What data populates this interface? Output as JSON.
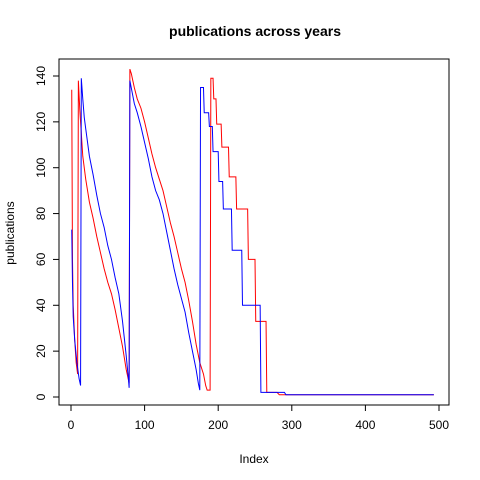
{
  "chart_data": {
    "type": "line",
    "title": "publications across years",
    "xlabel": "Index",
    "ylabel": "publications",
    "xlim": [
      0,
      500
    ],
    "ylim": [
      0,
      145
    ],
    "x_ticks": [
      0,
      100,
      200,
      300,
      400,
      500
    ],
    "y_ticks": [
      0,
      20,
      40,
      60,
      80,
      100,
      120,
      140
    ],
    "grid": false,
    "series": [
      {
        "color": "#ff0000",
        "points": [
          [
            1,
            134
          ],
          [
            2,
            60
          ],
          [
            3,
            40
          ],
          [
            5,
            25
          ],
          [
            7,
            15
          ],
          [
            9,
            10
          ],
          [
            10,
            138
          ],
          [
            12,
            125
          ],
          [
            14,
            115
          ],
          [
            16,
            105
          ],
          [
            20,
            95
          ],
          [
            25,
            85
          ],
          [
            30,
            78
          ],
          [
            35,
            70
          ],
          [
            40,
            63
          ],
          [
            45,
            56
          ],
          [
            50,
            50
          ],
          [
            55,
            45
          ],
          [
            60,
            38
          ],
          [
            65,
            30
          ],
          [
            70,
            22
          ],
          [
            75,
            12
          ],
          [
            79,
            6
          ],
          [
            80,
            143
          ],
          [
            82,
            141
          ],
          [
            84,
            138
          ],
          [
            86,
            135
          ],
          [
            90,
            130
          ],
          [
            95,
            126
          ],
          [
            100,
            120
          ],
          [
            105,
            113
          ],
          [
            110,
            106
          ],
          [
            115,
            100
          ],
          [
            120,
            95
          ],
          [
            125,
            90
          ],
          [
            130,
            83
          ],
          [
            135,
            76
          ],
          [
            140,
            70
          ],
          [
            145,
            63
          ],
          [
            150,
            56
          ],
          [
            155,
            50
          ],
          [
            160,
            42
          ],
          [
            165,
            33
          ],
          [
            170,
            23
          ],
          [
            175,
            15
          ],
          [
            180,
            10
          ],
          [
            183,
            5
          ],
          [
            185,
            3
          ],
          [
            189,
            3
          ],
          [
            190,
            139
          ],
          [
            193,
            139
          ],
          [
            194,
            130
          ],
          [
            197,
            130
          ],
          [
            198,
            119
          ],
          [
            204,
            119
          ],
          [
            205,
            109
          ],
          [
            214,
            109
          ],
          [
            215,
            96
          ],
          [
            224,
            96
          ],
          [
            225,
            82
          ],
          [
            240,
            82
          ],
          [
            241,
            60
          ],
          [
            250,
            60
          ],
          [
            251,
            33
          ],
          [
            265,
            33
          ],
          [
            266,
            2
          ],
          [
            280,
            2
          ],
          [
            283,
            1
          ],
          [
            493,
            1
          ]
        ]
      },
      {
        "color": "#0000ff",
        "points": [
          [
            1,
            73
          ],
          [
            2,
            50
          ],
          [
            3,
            35
          ],
          [
            5,
            25
          ],
          [
            8,
            15
          ],
          [
            11,
            8
          ],
          [
            13,
            5
          ],
          [
            14,
            139
          ],
          [
            16,
            130
          ],
          [
            18,
            122
          ],
          [
            20,
            117
          ],
          [
            25,
            105
          ],
          [
            30,
            97
          ],
          [
            35,
            88
          ],
          [
            40,
            80
          ],
          [
            45,
            74
          ],
          [
            50,
            66
          ],
          [
            55,
            60
          ],
          [
            60,
            52
          ],
          [
            65,
            45
          ],
          [
            70,
            33
          ],
          [
            75,
            18
          ],
          [
            78,
            8
          ],
          [
            79,
            4
          ],
          [
            80,
            138
          ],
          [
            83,
            133
          ],
          [
            86,
            128
          ],
          [
            90,
            124
          ],
          [
            95,
            118
          ],
          [
            100,
            111
          ],
          [
            105,
            104
          ],
          [
            110,
            96
          ],
          [
            115,
            90
          ],
          [
            120,
            86
          ],
          [
            125,
            80
          ],
          [
            130,
            72
          ],
          [
            135,
            64
          ],
          [
            140,
            56
          ],
          [
            145,
            49
          ],
          [
            150,
            43
          ],
          [
            155,
            37
          ],
          [
            160,
            28
          ],
          [
            165,
            20
          ],
          [
            170,
            12
          ],
          [
            173,
            6
          ],
          [
            175,
            3
          ],
          [
            176,
            135
          ],
          [
            180,
            135
          ],
          [
            181,
            124
          ],
          [
            187,
            124
          ],
          [
            188,
            118
          ],
          [
            192,
            118
          ],
          [
            193,
            107
          ],
          [
            200,
            107
          ],
          [
            201,
            94
          ],
          [
            206,
            94
          ],
          [
            207,
            82
          ],
          [
            218,
            82
          ],
          [
            219,
            64
          ],
          [
            232,
            64
          ],
          [
            233,
            40
          ],
          [
            257,
            40
          ],
          [
            258,
            2
          ],
          [
            290,
            2
          ],
          [
            292,
            1
          ],
          [
            493,
            1
          ]
        ]
      }
    ]
  }
}
